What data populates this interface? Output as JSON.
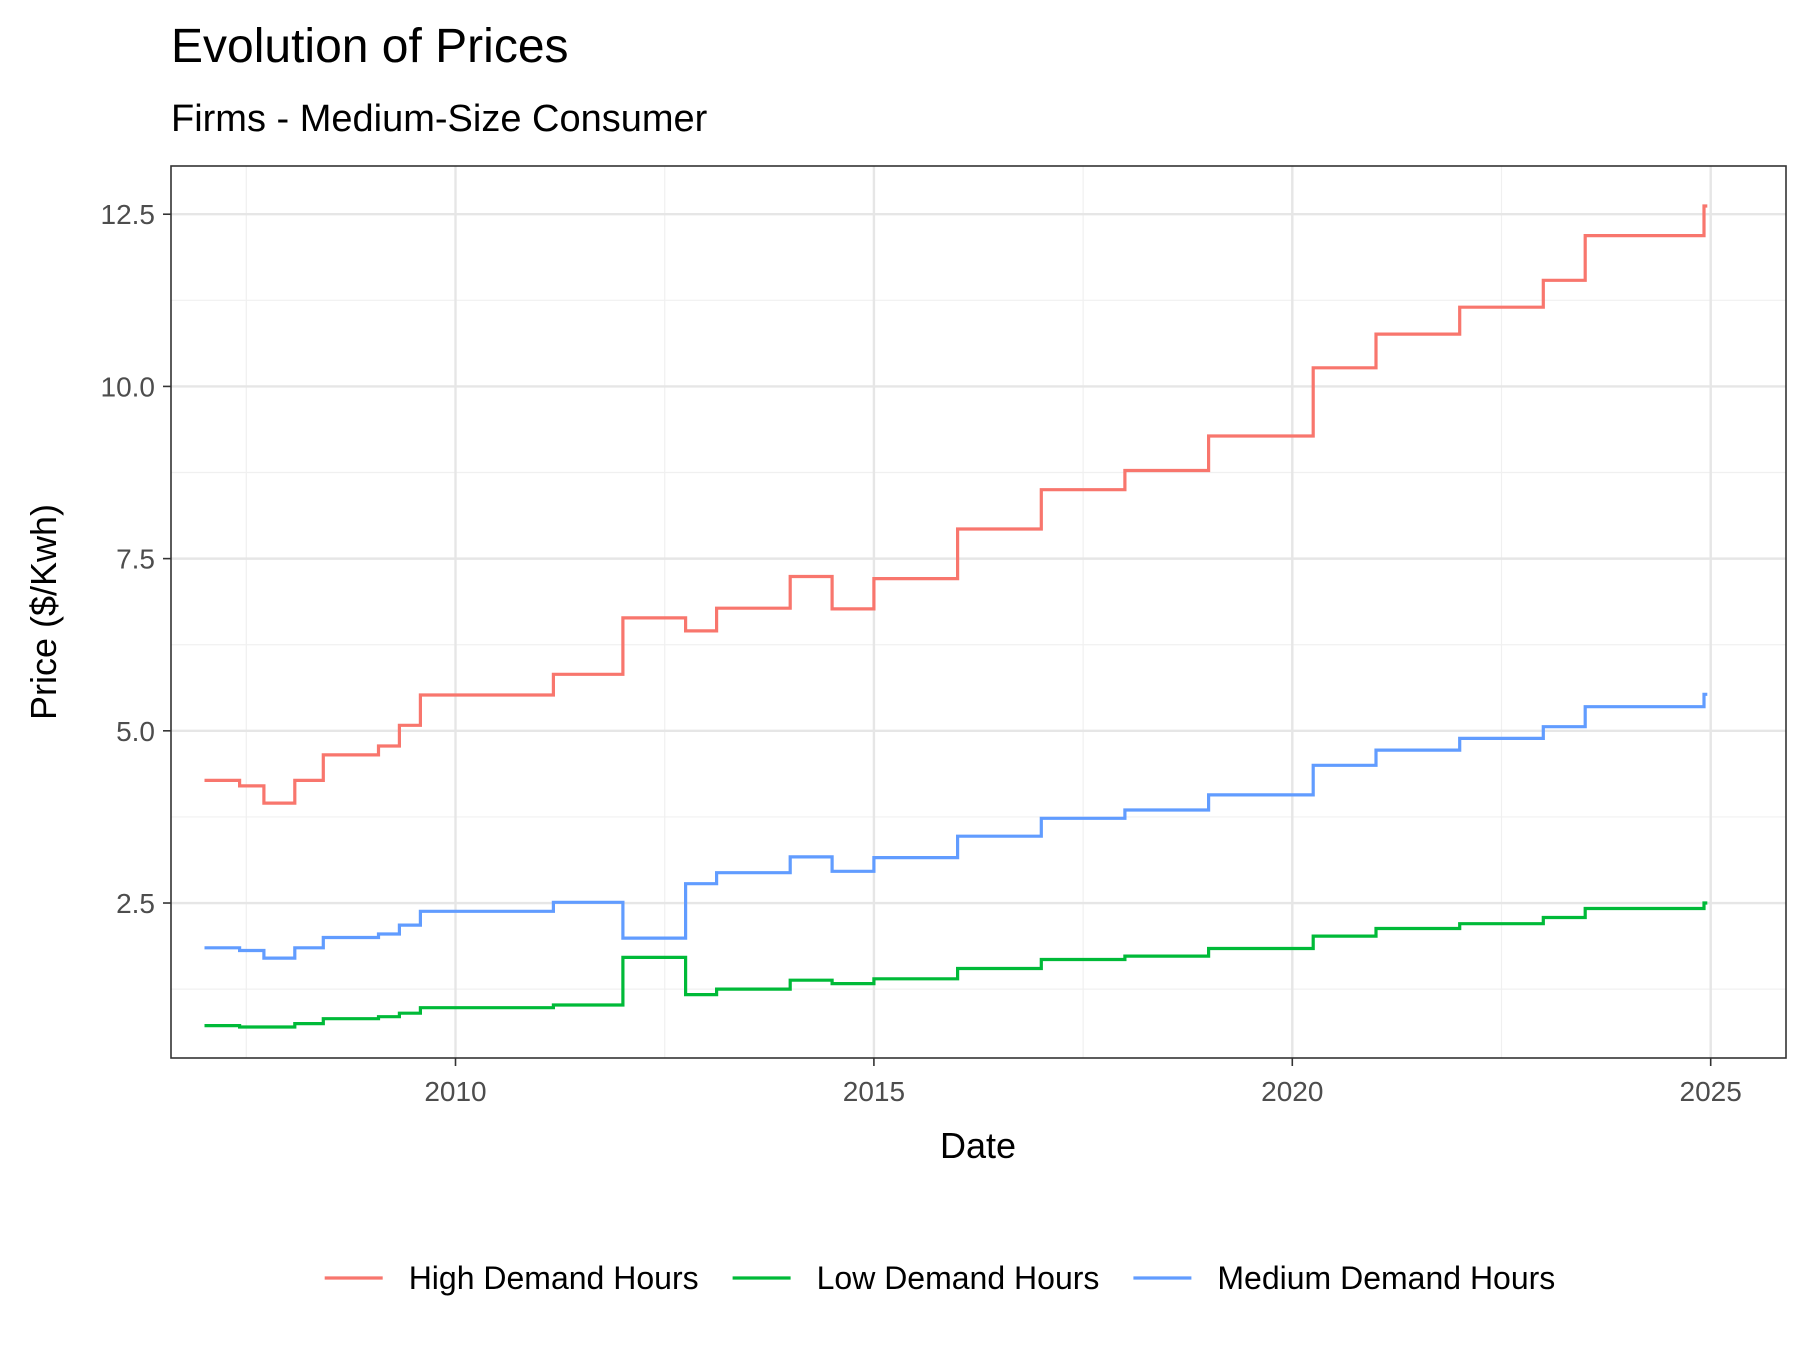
{
  "chart_data": {
    "type": "line",
    "step": true,
    "title": "Evolution of Prices",
    "subtitle": "Firms - Medium-Size Consumer",
    "xlabel": "Date",
    "ylabel": "Price ($/Kwh)",
    "xlim": [
      2006.6,
      2025.9
    ],
    "ylim": [
      0.25,
      13.2
    ],
    "x_ticks": [
      2010,
      2015,
      2020,
      2025
    ],
    "x_tick_labels": [
      "2010",
      "2015",
      "2020",
      "2025"
    ],
    "y_ticks": [
      2.5,
      5.0,
      7.5,
      10.0,
      12.5
    ],
    "y_tick_labels": [
      "2.5",
      "5.0",
      "7.5",
      "10.0",
      "12.5"
    ],
    "grid": true,
    "legend_position": "bottom",
    "series": [
      {
        "name": "High Demand Hours",
        "color": "#F8766D",
        "points": [
          [
            2007.0,
            4.28
          ],
          [
            2007.42,
            4.2
          ],
          [
            2007.71,
            3.95
          ],
          [
            2008.08,
            4.28
          ],
          [
            2008.42,
            4.65
          ],
          [
            2009.08,
            4.78
          ],
          [
            2009.33,
            5.08
          ],
          [
            2009.58,
            5.52
          ],
          [
            2011.17,
            5.82
          ],
          [
            2012.0,
            6.64
          ],
          [
            2012.75,
            6.45
          ],
          [
            2013.12,
            6.78
          ],
          [
            2014.0,
            7.24
          ],
          [
            2014.5,
            6.77
          ],
          [
            2015.0,
            7.21
          ],
          [
            2016.0,
            7.93
          ],
          [
            2017.0,
            8.5
          ],
          [
            2018.0,
            8.78
          ],
          [
            2019.0,
            9.28
          ],
          [
            2020.25,
            10.27
          ],
          [
            2021.0,
            10.76
          ],
          [
            2022.0,
            11.15
          ],
          [
            2023.0,
            11.54
          ],
          [
            2023.5,
            12.19
          ],
          [
            2024.92,
            12.62
          ],
          [
            2024.96,
            12.62
          ]
        ]
      },
      {
        "name": "Low Demand Hours",
        "color": "#00BA38",
        "points": [
          [
            2007.0,
            0.72
          ],
          [
            2007.42,
            0.7
          ],
          [
            2007.71,
            0.7
          ],
          [
            2008.08,
            0.75
          ],
          [
            2008.42,
            0.82
          ],
          [
            2009.08,
            0.85
          ],
          [
            2009.33,
            0.9
          ],
          [
            2009.58,
            0.98
          ],
          [
            2011.17,
            1.02
          ],
          [
            2012.0,
            1.71
          ],
          [
            2012.75,
            1.17
          ],
          [
            2013.12,
            1.25
          ],
          [
            2014.0,
            1.38
          ],
          [
            2014.5,
            1.33
          ],
          [
            2015.0,
            1.4
          ],
          [
            2016.0,
            1.55
          ],
          [
            2017.0,
            1.68
          ],
          [
            2018.0,
            1.73
          ],
          [
            2019.0,
            1.84
          ],
          [
            2020.25,
            2.02
          ],
          [
            2021.0,
            2.13
          ],
          [
            2022.0,
            2.2
          ],
          [
            2023.0,
            2.29
          ],
          [
            2023.5,
            2.42
          ],
          [
            2024.92,
            2.5
          ],
          [
            2024.96,
            2.5
          ]
        ]
      },
      {
        "name": "Medium Demand Hours",
        "color": "#619CFF",
        "points": [
          [
            2007.0,
            1.85
          ],
          [
            2007.42,
            1.81
          ],
          [
            2007.71,
            1.7
          ],
          [
            2008.08,
            1.85
          ],
          [
            2008.42,
            2.0
          ],
          [
            2009.08,
            2.05
          ],
          [
            2009.33,
            2.18
          ],
          [
            2009.58,
            2.38
          ],
          [
            2011.17,
            2.51
          ],
          [
            2012.0,
            1.99
          ],
          [
            2012.75,
            2.78
          ],
          [
            2013.12,
            2.94
          ],
          [
            2014.0,
            3.17
          ],
          [
            2014.5,
            2.96
          ],
          [
            2015.0,
            3.16
          ],
          [
            2016.0,
            3.47
          ],
          [
            2017.0,
            3.73
          ],
          [
            2018.0,
            3.85
          ],
          [
            2019.0,
            4.07
          ],
          [
            2020.25,
            4.5
          ],
          [
            2021.0,
            4.72
          ],
          [
            2022.0,
            4.89
          ],
          [
            2023.0,
            5.06
          ],
          [
            2023.5,
            5.35
          ],
          [
            2024.92,
            5.53
          ],
          [
            2024.96,
            5.53
          ]
        ]
      }
    ]
  }
}
